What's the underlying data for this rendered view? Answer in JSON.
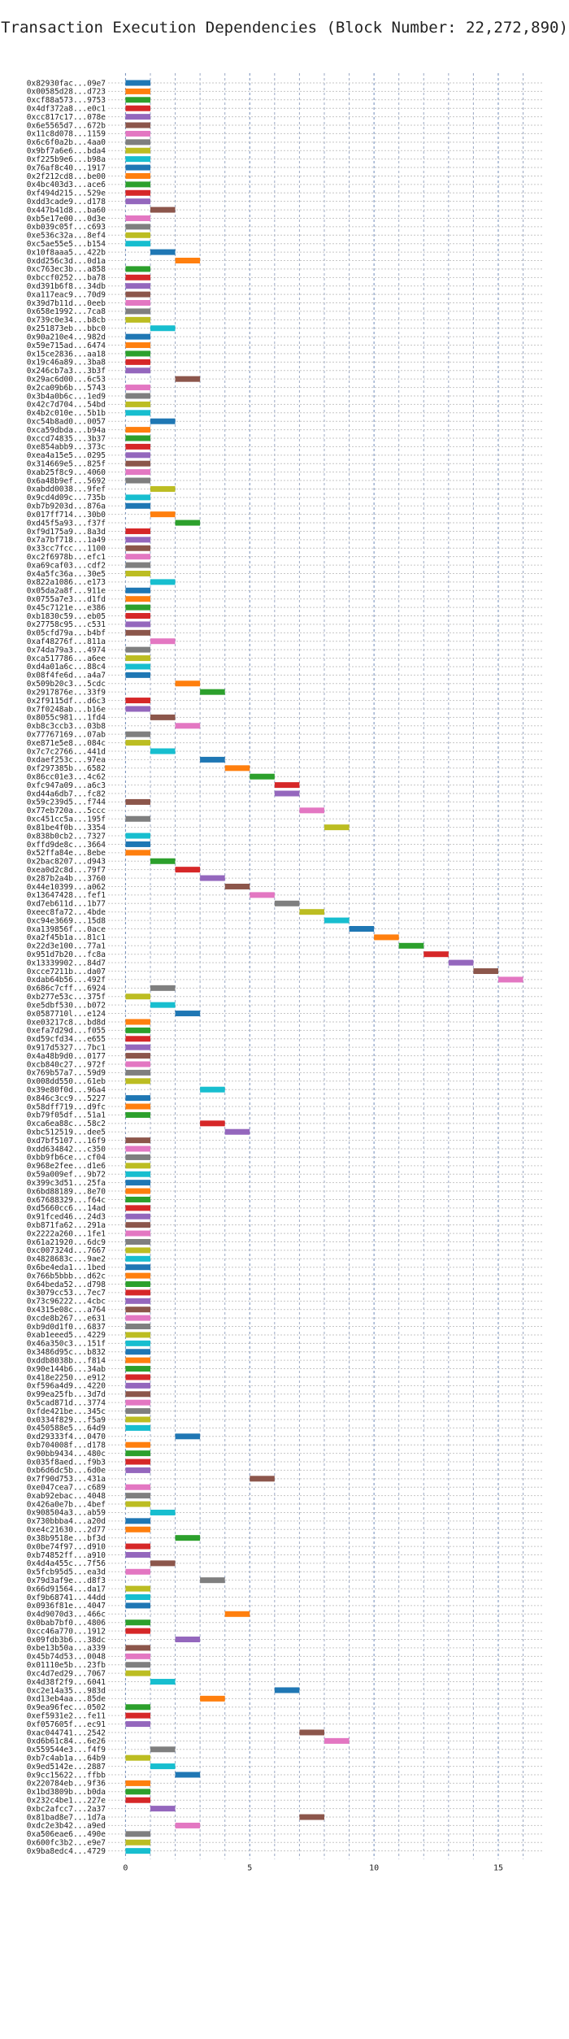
{
  "chart_data": {
    "type": "bar",
    "orientation": "horizontal",
    "title": "Transaction Execution Dependencies (Block Number: 22,272,890)",
    "xlabel": "",
    "ylabel": "",
    "xlim": [
      -0.7,
      16.8
    ],
    "xticks": [
      0,
      5,
      10,
      15
    ],
    "grid": true,
    "legend": "none",
    "bar_width_units": 1,
    "palette": [
      "#1f77b4",
      "#ff7f0e",
      "#2ca02c",
      "#d62728",
      "#9467bd",
      "#8c564b",
      "#e377c2",
      "#7f7f7f",
      "#bcbd22",
      "#17becf"
    ],
    "transactions": [
      {
        "label": "0x82930fac...09e7",
        "start": 0
      },
      {
        "label": "0x00585d28...d723",
        "start": 0
      },
      {
        "label": "0xcf88a573...9753",
        "start": 0
      },
      {
        "label": "0x4df372a8...e0c1",
        "start": 0
      },
      {
        "label": "0xcc817c17...078e",
        "start": 0
      },
      {
        "label": "0x6e5565d7...672b",
        "start": 0
      },
      {
        "label": "0x11c8d078...1159",
        "start": 0
      },
      {
        "label": "0x6c6f0a2b...4aa0",
        "start": 0
      },
      {
        "label": "0x9bf7a6e6...bda4",
        "start": 0
      },
      {
        "label": "0xf225b9e6...b98a",
        "start": 0
      },
      {
        "label": "0x76af8c40...1917",
        "start": 0
      },
      {
        "label": "0x2f212cd8...be00",
        "start": 0
      },
      {
        "label": "0x4bc403d3...ace6",
        "start": 0
      },
      {
        "label": "0xf494d215...529e",
        "start": 0
      },
      {
        "label": "0xdd3cade9...d178",
        "start": 0
      },
      {
        "label": "0x447b41d8...ba60",
        "start": 1
      },
      {
        "label": "0xb5e17e00...0d3e",
        "start": 0
      },
      {
        "label": "0xb039c05f...c693",
        "start": 0
      },
      {
        "label": "0xe536c32a...8ef4",
        "start": 0
      },
      {
        "label": "0xc5ae55e5...b154",
        "start": 0
      },
      {
        "label": "0x10f8aaa5...422b",
        "start": 1
      },
      {
        "label": "0xdd256c3d...0d1a",
        "start": 2
      },
      {
        "label": "0xc763ec3b...a858",
        "start": 0
      },
      {
        "label": "0xbccf0252...ba78",
        "start": 0
      },
      {
        "label": "0xd391b6f8...34db",
        "start": 0
      },
      {
        "label": "0xa117eac9...70d9",
        "start": 0
      },
      {
        "label": "0x39d7b11d...0eeb",
        "start": 0
      },
      {
        "label": "0x658e1992...7ca8",
        "start": 0
      },
      {
        "label": "0x739c0e34...b8cb",
        "start": 0
      },
      {
        "label": "0x251873eb...bbc0",
        "start": 1
      },
      {
        "label": "0x90a210e4...982d",
        "start": 0
      },
      {
        "label": "0x59e715ad...6474",
        "start": 0
      },
      {
        "label": "0x15ce2836...aa18",
        "start": 0
      },
      {
        "label": "0x19c46a89...3ba8",
        "start": 0
      },
      {
        "label": "0x246cb7a3...3b3f",
        "start": 0
      },
      {
        "label": "0x29ac6d00...6c53",
        "start": 2
      },
      {
        "label": "0x2ca09b6b...5743",
        "start": 0
      },
      {
        "label": "0x3b4a0b6c...1ed9",
        "start": 0
      },
      {
        "label": "0x42c7d704...54bd",
        "start": 0
      },
      {
        "label": "0x4b2c010e...5b1b",
        "start": 0
      },
      {
        "label": "0xc54b8ad0...0057",
        "start": 1
      },
      {
        "label": "0xca59dbda...b94a",
        "start": 0
      },
      {
        "label": "0xccd74835...3b37",
        "start": 0
      },
      {
        "label": "0xe854abb9...373c",
        "start": 0
      },
      {
        "label": "0xea4a15e5...0295",
        "start": 0
      },
      {
        "label": "0x314669e5...825f",
        "start": 0
      },
      {
        "label": "0xab25f8c9...4060",
        "start": 0
      },
      {
        "label": "0x6a48b9ef...5692",
        "start": 0
      },
      {
        "label": "0xabdd0038...9fef",
        "start": 1
      },
      {
        "label": "0x9cd4d09c...735b",
        "start": 0
      },
      {
        "label": "0xb7b9203d...876a",
        "start": 0
      },
      {
        "label": "0x017ff714...30b0",
        "start": 1
      },
      {
        "label": "0xd45f5a93...f37f",
        "start": 2
      },
      {
        "label": "0xf9d175a9...8a3d",
        "start": 0
      },
      {
        "label": "0x7a7bf718...1a49",
        "start": 0
      },
      {
        "label": "0x33cc7fcc...1100",
        "start": 0
      },
      {
        "label": "0xc2f6978b...efc1",
        "start": 0
      },
      {
        "label": "0xa69caf03...cdf2",
        "start": 0
      },
      {
        "label": "0x4a5fc36a...30e5",
        "start": 0
      },
      {
        "label": "0x822a1086...e173",
        "start": 1
      },
      {
        "label": "0x05da2a8f...911e",
        "start": 0
      },
      {
        "label": "0x0755a7e3...d1fd",
        "start": 0
      },
      {
        "label": "0x45c7121e...e386",
        "start": 0
      },
      {
        "label": "0xb1830c59...eb05",
        "start": 0
      },
      {
        "label": "0x27758c95...c531",
        "start": 0
      },
      {
        "label": "0x05cfd79a...b4bf",
        "start": 0
      },
      {
        "label": "0xaf48276f...811a",
        "start": 1
      },
      {
        "label": "0x74da79a3...4974",
        "start": 0
      },
      {
        "label": "0xca517786...a6ee",
        "start": 0
      },
      {
        "label": "0xd4a01a6c...88c4",
        "start": 0
      },
      {
        "label": "0x08f4fe6d...a4a7",
        "start": 0
      },
      {
        "label": "0x509b20c3...5cdc",
        "start": 2
      },
      {
        "label": "0x2917876e...33f9",
        "start": 3
      },
      {
        "label": "0x2f9115df...d6c3",
        "start": 0
      },
      {
        "label": "0x7f0248ab...b16e",
        "start": 0
      },
      {
        "label": "0x8055c981...1fd4",
        "start": 1
      },
      {
        "label": "0xb8c3ccb3...03b8",
        "start": 2
      },
      {
        "label": "0x77767169...07ab",
        "start": 0
      },
      {
        "label": "0xe871e5e8...084c",
        "start": 0
      },
      {
        "label": "0x7c7c2766...441d",
        "start": 1
      },
      {
        "label": "0xdaef253c...97ea",
        "start": 3
      },
      {
        "label": "0xf297385b...6582",
        "start": 4
      },
      {
        "label": "0x86cc01e3...4c62",
        "start": 5
      },
      {
        "label": "0xfc947a09...a6c3",
        "start": 6
      },
      {
        "label": "0xd44a6db7...fc82",
        "start": 6
      },
      {
        "label": "0x59c239d5...f744",
        "start": 0
      },
      {
        "label": "0x77eb720a...5ccc",
        "start": 7
      },
      {
        "label": "0xc451cc5a...195f",
        "start": 0
      },
      {
        "label": "0x81be4f0b...3354",
        "start": 8
      },
      {
        "label": "0x838b0cb2...7327",
        "start": 0
      },
      {
        "label": "0xffd9de8c...3664",
        "start": 0
      },
      {
        "label": "0x52ffa84e...8ebe",
        "start": 0
      },
      {
        "label": "0x2bac8207...d943",
        "start": 1
      },
      {
        "label": "0xea0d2c8d...79f7",
        "start": 2
      },
      {
        "label": "0x287b2a4b...3760",
        "start": 3
      },
      {
        "label": "0x44e10399...a062",
        "start": 4
      },
      {
        "label": "0x13647428...fef1",
        "start": 5
      },
      {
        "label": "0xd7eb611d...1b77",
        "start": 6
      },
      {
        "label": "0xeec8fa72...4bde",
        "start": 7
      },
      {
        "label": "0xc94e3669...15d8",
        "start": 8
      },
      {
        "label": "0xa139856f...0ace",
        "start": 9
      },
      {
        "label": "0xa2f45b1a...81c1",
        "start": 10
      },
      {
        "label": "0x22d3e100...77a1",
        "start": 11
      },
      {
        "label": "0x951d7b20...fc8a",
        "start": 12
      },
      {
        "label": "0x13339902...84d7",
        "start": 13
      },
      {
        "label": "0xcce7211b...da07",
        "start": 14
      },
      {
        "label": "0xdab64b56...492f",
        "start": 15
      },
      {
        "label": "0x686c7cff...6924",
        "start": 1
      },
      {
        "label": "0xb277e53c...375f",
        "start": 0
      },
      {
        "label": "0xe5dbf530...b072",
        "start": 1
      },
      {
        "label": "0x0587710l...e124",
        "start": 2
      },
      {
        "label": "0xe03217c8...bd8d",
        "start": 0
      },
      {
        "label": "0xefa7d29d...f055",
        "start": 0
      },
      {
        "label": "0xd59cfd34...e655",
        "start": 0
      },
      {
        "label": "0x917d5327...7bc1",
        "start": 0
      },
      {
        "label": "0x4a48b9d0...0177",
        "start": 0
      },
      {
        "label": "0xcb840c27...972f",
        "start": 0
      },
      {
        "label": "0x769b57a7...59d9",
        "start": 0
      },
      {
        "label": "0x008dd550...61eb",
        "start": 0
      },
      {
        "label": "0x39e80f0d...96a4",
        "start": 3
      },
      {
        "label": "0x846c3cc9...5227",
        "start": 0
      },
      {
        "label": "0x58dff719...d9fc",
        "start": 0
      },
      {
        "label": "0xb79f05df...51a1",
        "start": 0
      },
      {
        "label": "0xca6ea88c...58c2",
        "start": 3
      },
      {
        "label": "0xbc512519...dee5",
        "start": 4
      },
      {
        "label": "0xd7bf5107...16f9",
        "start": 0
      },
      {
        "label": "0xdd634842...c350",
        "start": 0
      },
      {
        "label": "0xbb9fb6ce...cf04",
        "start": 0
      },
      {
        "label": "0x968e2fee...d1e6",
        "start": 0
      },
      {
        "label": "0x59a009ef...9b72",
        "start": 0
      },
      {
        "label": "0x399c3d51...25fa",
        "start": 0
      },
      {
        "label": "0x6bd88189...8e70",
        "start": 0
      },
      {
        "label": "0x67688329...f64c",
        "start": 0
      },
      {
        "label": "0xd5660cc6...14ad",
        "start": 0
      },
      {
        "label": "0x91fced46...24d3",
        "start": 0
      },
      {
        "label": "0xb871fa62...291a",
        "start": 0
      },
      {
        "label": "0x2222a260...1fe1",
        "start": 0
      },
      {
        "label": "0x61a21920...6dc9",
        "start": 0
      },
      {
        "label": "0xc007324d...7667",
        "start": 0
      },
      {
        "label": "0x4828683c...9ae2",
        "start": 0
      },
      {
        "label": "0x6be4eda1...1bed",
        "start": 0
      },
      {
        "label": "0x766b5bbb...d62c",
        "start": 0
      },
      {
        "label": "0x64beda52...d798",
        "start": 0
      },
      {
        "label": "0x3079cc53...7ec7",
        "start": 0
      },
      {
        "label": "0x73c96222...4cbc",
        "start": 0
      },
      {
        "label": "0x4315e08c...a764",
        "start": 0
      },
      {
        "label": "0xcde8b267...e631",
        "start": 0
      },
      {
        "label": "0xb9d0d1f0...6837",
        "start": 0
      },
      {
        "label": "0xab1eeed5...4229",
        "start": 0
      },
      {
        "label": "0x46a350c3...151f",
        "start": 0
      },
      {
        "label": "0x3486d95c...b832",
        "start": 0
      },
      {
        "label": "0xddb8038b...f814",
        "start": 0
      },
      {
        "label": "0x90e144b6...34ab",
        "start": 0
      },
      {
        "label": "0x418e2250...e912",
        "start": 0
      },
      {
        "label": "0xf596a4d9...4220",
        "start": 0
      },
      {
        "label": "0x99ea25fb...3d7d",
        "start": 0
      },
      {
        "label": "0x5cad871d...3774",
        "start": 0
      },
      {
        "label": "0xfde421be...345c",
        "start": 0
      },
      {
        "label": "0x0334f829...f5a9",
        "start": 0
      },
      {
        "label": "0x450588e5...64d9",
        "start": 0
      },
      {
        "label": "0xd29333f4...0470",
        "start": 2
      },
      {
        "label": "0xb704008f...d178",
        "start": 0
      },
      {
        "label": "0x90bb9434...480c",
        "start": 0
      },
      {
        "label": "0x035f8aed...f9b3",
        "start": 0
      },
      {
        "label": "0xb6d6dc5b...6d0e",
        "start": 0
      },
      {
        "label": "0x7f90d753...431a",
        "start": 5
      },
      {
        "label": "0xe047cea7...c689",
        "start": 0
      },
      {
        "label": "0xab92ebac...4048",
        "start": 0
      },
      {
        "label": "0x426a0e7b...4bef",
        "start": 0
      },
      {
        "label": "0x908504a3...ab59",
        "start": 1
      },
      {
        "label": "0x730bbba4...a20d",
        "start": 0
      },
      {
        "label": "0xe4c21630...2d77",
        "start": 0
      },
      {
        "label": "0x38b9518e...bf3d",
        "start": 2
      },
      {
        "label": "0x0be74f97...d910",
        "start": 0
      },
      {
        "label": "0xb74852ff...a910",
        "start": 0
      },
      {
        "label": "0x4d4a455c...7f56",
        "start": 1
      },
      {
        "label": "0x5fcb95d5...ea3d",
        "start": 0
      },
      {
        "label": "0x79d3af9e...d8f3",
        "start": 3
      },
      {
        "label": "0x66d91564...da17",
        "start": 0
      },
      {
        "label": "0xf9b68741...44dd",
        "start": 0
      },
      {
        "label": "0x0936f81e...4047",
        "start": 0
      },
      {
        "label": "0x4d9070d3...466c",
        "start": 4
      },
      {
        "label": "0x0bab7bf0...4806",
        "start": 0
      },
      {
        "label": "0xcc46a770...1912",
        "start": 0
      },
      {
        "label": "0x09fdb3b6...38dc",
        "start": 2
      },
      {
        "label": "0xbe13b50a...a339",
        "start": 0
      },
      {
        "label": "0x45b74d53...0048",
        "start": 0
      },
      {
        "label": "0x01110e5b...23fb",
        "start": 0
      },
      {
        "label": "0xc4d7ed29...7067",
        "start": 0
      },
      {
        "label": "0x4d38f2f9...6041",
        "start": 1
      },
      {
        "label": "0xc2e14a35...983d",
        "start": 6
      },
      {
        "label": "0xd13eb4aa...85de",
        "start": 3
      },
      {
        "label": "0x9ea96fec...0502",
        "start": 0
      },
      {
        "label": "0xef5931e2...fe11",
        "start": 0
      },
      {
        "label": "0xf057605f...ec91",
        "start": 0
      },
      {
        "label": "0xac044741...2542",
        "start": 7
      },
      {
        "label": "0xd6b61c84...6e26",
        "start": 8
      },
      {
        "label": "0x559544e3...f4f9",
        "start": 1
      },
      {
        "label": "0xb7c4ab1a...64b9",
        "start": 0
      },
      {
        "label": "0x9ed5142e...2887",
        "start": 1
      },
      {
        "label": "0x9cc15622...ffbb",
        "start": 2
      },
      {
        "label": "0x220784eb...9f36",
        "start": 0
      },
      {
        "label": "0x1bd3809b...b0da",
        "start": 0
      },
      {
        "label": "0x232c4be1...227e",
        "start": 0
      },
      {
        "label": "0xbc2afcc7...2a37",
        "start": 1
      },
      {
        "label": "0x81bad8e7...1d7a",
        "start": 7
      },
      {
        "label": "0xdc2e3b42...a9ed",
        "start": 2
      },
      {
        "label": "0xa506eae6...490e",
        "start": 0
      },
      {
        "label": "0x600fc3b2...e9e7",
        "start": 0
      },
      {
        "label": "0x9ba8edc4...4729",
        "start": 0
      }
    ]
  }
}
